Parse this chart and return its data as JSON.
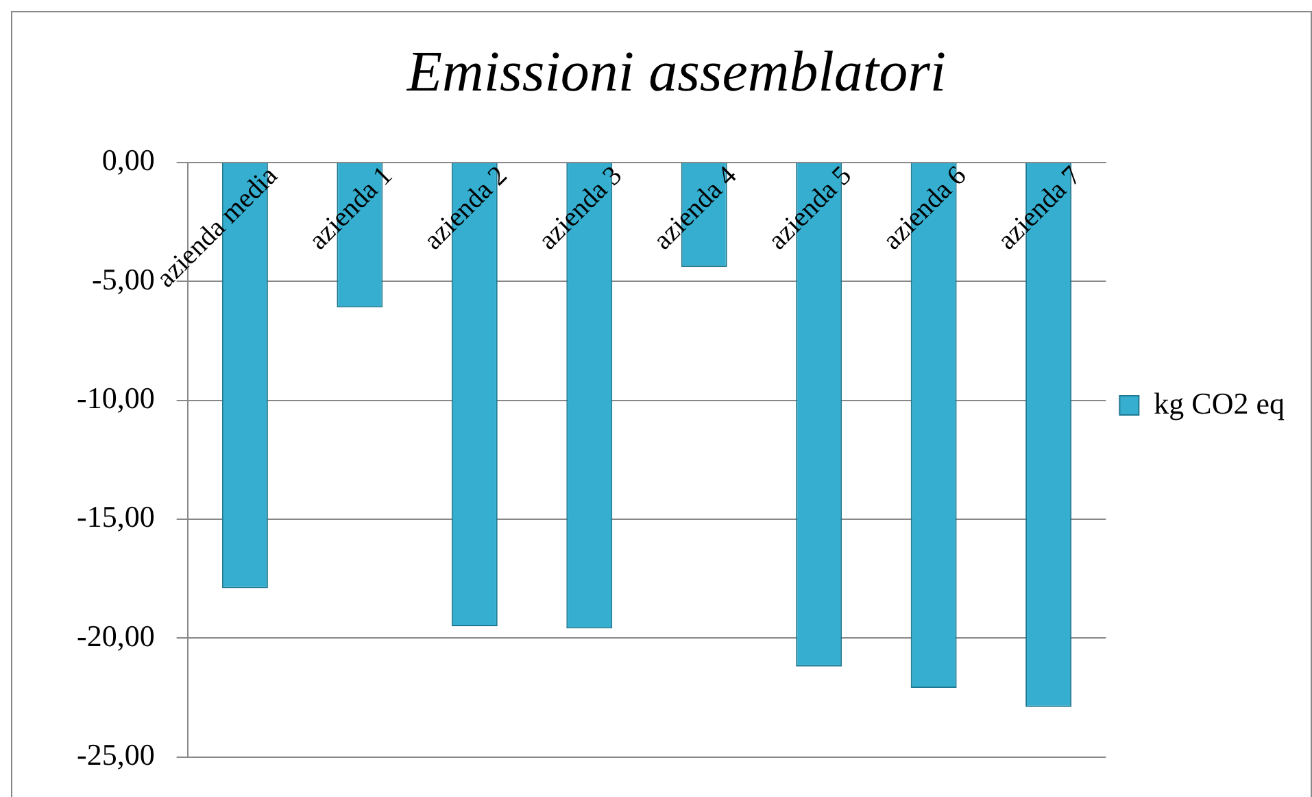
{
  "chart_data": {
    "type": "bar",
    "title": "Emissioni assemblatori",
    "categories": [
      "azienda media",
      "azienda 1",
      "azienda 2",
      "azienda 3",
      "azienda 4",
      "azienda 5",
      "azienda 6",
      "azienda 7"
    ],
    "series": [
      {
        "name": "kg CO2 eq",
        "color": "#35aecf",
        "values": [
          -17.9,
          -6.1,
          -19.5,
          -19.6,
          -4.4,
          -21.2,
          -22.1,
          -22.9
        ]
      }
    ],
    "ylim": [
      -25,
      0
    ],
    "yticks": [
      {
        "value": 0,
        "label": "0,00"
      },
      {
        "value": -5,
        "label": "-5,00"
      },
      {
        "value": -10,
        "label": "-10,00"
      },
      {
        "value": -15,
        "label": "-15,00"
      },
      {
        "value": -20,
        "label": "-20,00"
      },
      {
        "value": -25,
        "label": "-25,00"
      }
    ],
    "grid": "y",
    "legend": "right"
  }
}
